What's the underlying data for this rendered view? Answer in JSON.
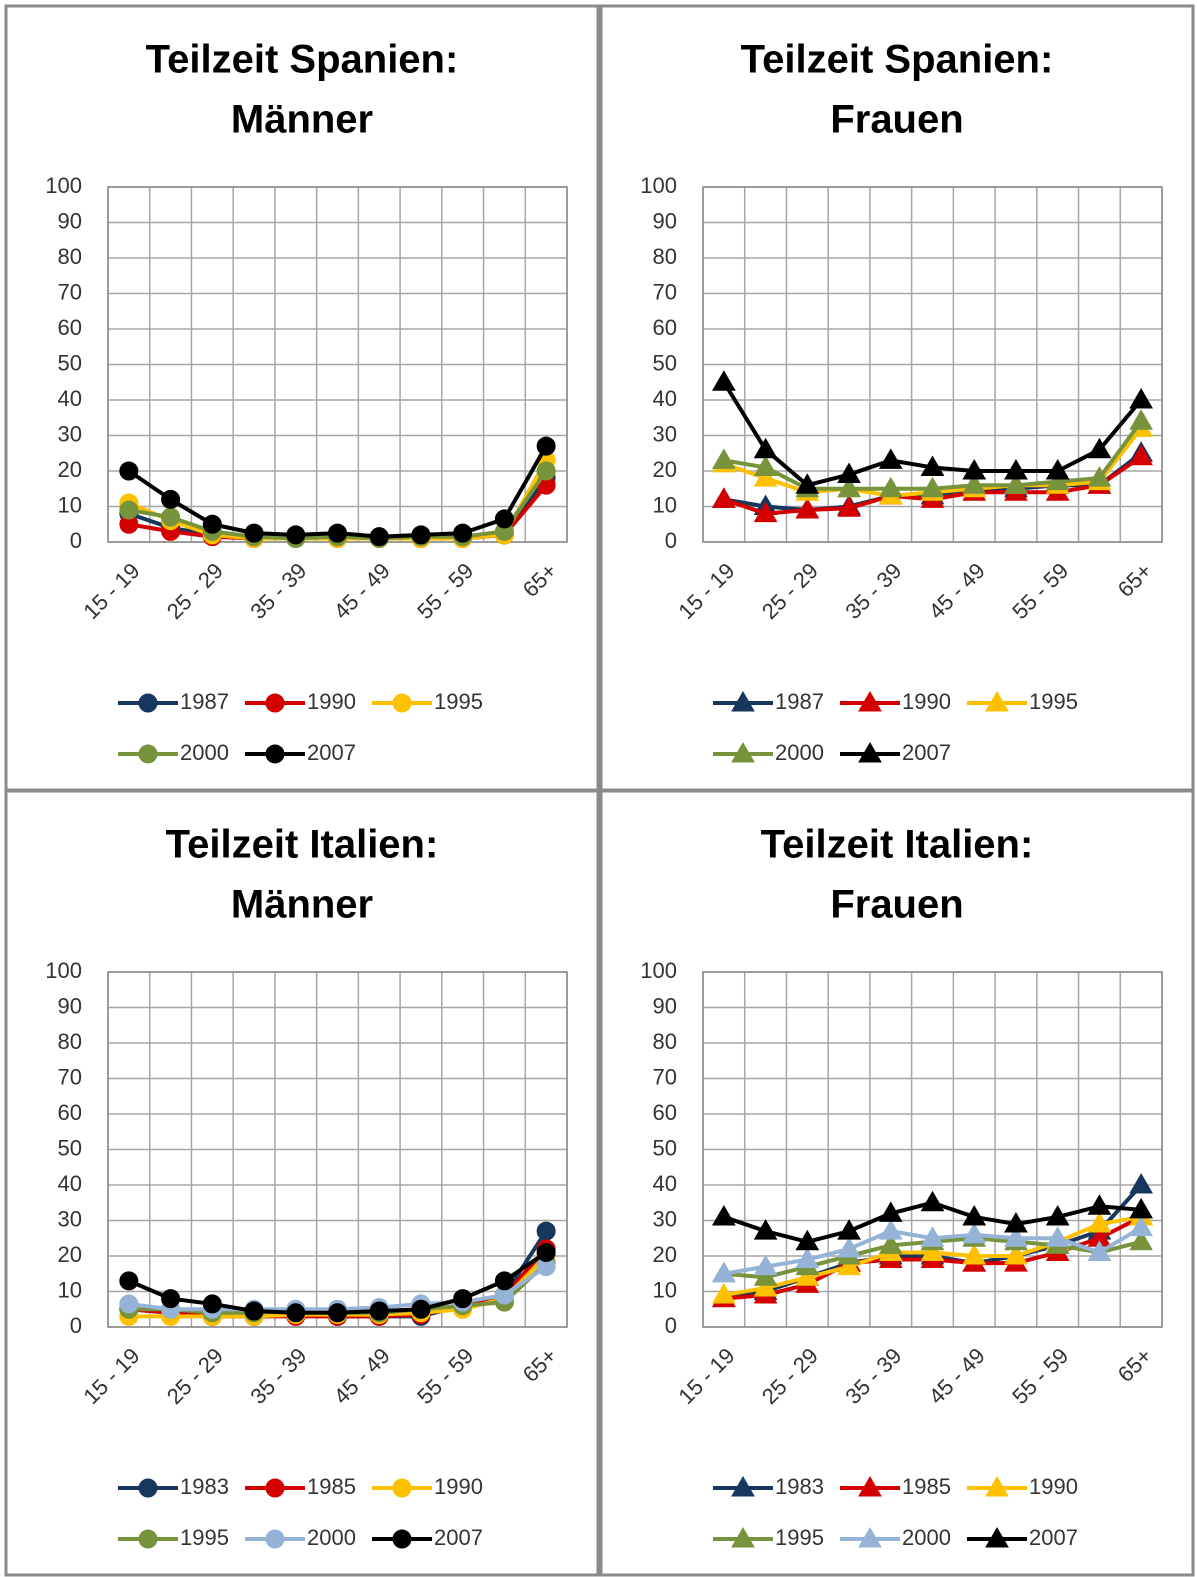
{
  "chart_data": [
    {
      "type": "line",
      "marker": "circle",
      "title": [
        "Teilzeit Spanien:",
        "Männer"
      ],
      "categories": [
        "15 - 19",
        null,
        "25 - 29",
        null,
        "35 - 39",
        null,
        "45 - 49",
        null,
        "55 - 59",
        null,
        "65+"
      ],
      "ylim": [
        0,
        100
      ],
      "yticks": [
        0,
        10,
        20,
        30,
        40,
        50,
        60,
        70,
        80,
        90,
        100
      ],
      "grid": true,
      "series": [
        {
          "name": "1987",
          "color": "#17375e",
          "values": [
            8,
            4,
            2,
            1,
            1,
            1,
            1,
            1,
            1,
            2,
            18
          ]
        },
        {
          "name": "1990",
          "color": "#d40000",
          "values": [
            5,
            3,
            1.5,
            1,
            1,
            1,
            1,
            1,
            1,
            2,
            16
          ]
        },
        {
          "name": "1995",
          "color": "#ffc000",
          "values": [
            11,
            6,
            2,
            1,
            1,
            1,
            1,
            1,
            1,
            2,
            23
          ]
        },
        {
          "name": "2000",
          "color": "#77933c",
          "values": [
            9,
            7,
            3,
            1.5,
            1,
            1.5,
            1,
            1.5,
            1.5,
            3,
            20
          ]
        },
        {
          "name": "2007",
          "color": "#000000",
          "values": [
            20,
            12,
            5,
            2.5,
            2,
            2.5,
            1.5,
            2,
            2.5,
            6.5,
            27
          ]
        }
      ]
    },
    {
      "type": "line",
      "marker": "triangle",
      "title": [
        "Teilzeit Spanien:",
        "Frauen"
      ],
      "categories": [
        "15 - 19",
        null,
        "25 - 29",
        null,
        "35 - 39",
        null,
        "45 - 49",
        null,
        "55 - 59",
        null,
        "65+"
      ],
      "ylim": [
        0,
        100
      ],
      "yticks": [
        0,
        10,
        20,
        30,
        40,
        50,
        60,
        70,
        80,
        90,
        100
      ],
      "grid": true,
      "series": [
        {
          "name": "1987",
          "color": "#17375e",
          "values": [
            12,
            10,
            9,
            10,
            13,
            13,
            15,
            15,
            16,
            16,
            25
          ]
        },
        {
          "name": "1990",
          "color": "#d40000",
          "values": [
            12,
            8,
            9,
            9.5,
            13,
            12,
            14,
            14,
            14,
            16,
            24
          ]
        },
        {
          "name": "1995",
          "color": "#ffc000",
          "values": [
            22,
            18,
            14,
            15,
            13,
            14,
            15,
            16,
            16,
            17,
            32
          ]
        },
        {
          "name": "2000",
          "color": "#77933c",
          "values": [
            23,
            21,
            15,
            15,
            15,
            15,
            16,
            16,
            17,
            18,
            34
          ]
        },
        {
          "name": "2007",
          "color": "#000000",
          "values": [
            45,
            26,
            16,
            19,
            23,
            21,
            20,
            20,
            20,
            26,
            40
          ]
        }
      ]
    },
    {
      "type": "line",
      "marker": "circle",
      "title": [
        "Teilzeit Italien:",
        "Männer"
      ],
      "categories": [
        "15 - 19",
        null,
        "25 - 29",
        null,
        "35 - 39",
        null,
        "45 - 49",
        null,
        "55 - 59",
        null,
        "65+"
      ],
      "ylim": [
        0,
        100
      ],
      "yticks": [
        0,
        10,
        20,
        30,
        40,
        50,
        60,
        70,
        80,
        90,
        100
      ],
      "grid": true,
      "series": [
        {
          "name": "1983",
          "color": "#17375e",
          "values": [
            5,
            4,
            3,
            3,
            3.5,
            3,
            3,
            3,
            6,
            9,
            27
          ]
        },
        {
          "name": "1985",
          "color": "#d40000",
          "values": [
            5,
            4,
            3,
            3,
            3,
            3,
            3,
            3.5,
            6,
            9,
            22
          ]
        },
        {
          "name": "1990",
          "color": "#ffc000",
          "values": [
            3,
            3,
            3,
            3,
            3.5,
            3.5,
            3.5,
            4,
            5,
            8,
            20
          ]
        },
        {
          "name": "1995",
          "color": "#77933c",
          "values": [
            5,
            5,
            4,
            4,
            4.5,
            4,
            4,
            5,
            6,
            7,
            18
          ]
        },
        {
          "name": "2000",
          "color": "#95b3d7",
          "values": [
            6.5,
            5,
            5,
            5,
            5,
            5,
            5.5,
            6.5,
            7,
            9,
            17
          ]
        },
        {
          "name": "2007",
          "color": "#000000",
          "values": [
            13,
            8,
            6.5,
            4.5,
            4,
            4,
            4.5,
            5,
            8,
            13,
            21
          ]
        }
      ]
    },
    {
      "type": "line",
      "marker": "triangle",
      "title": [
        "Teilzeit Italien:",
        "Frauen"
      ],
      "categories": [
        "15 - 19",
        null,
        "25 - 29",
        null,
        "35 - 39",
        null,
        "45 - 49",
        null,
        "55 - 59",
        null,
        "65+"
      ],
      "ylim": [
        0,
        100
      ],
      "yticks": [
        0,
        10,
        20,
        30,
        40,
        50,
        60,
        70,
        80,
        90,
        100
      ],
      "grid": true,
      "series": [
        {
          "name": "1983",
          "color": "#17375e",
          "values": [
            8,
            10,
            14,
            18,
            20,
            20,
            18,
            20,
            23,
            27,
            40
          ]
        },
        {
          "name": "1985",
          "color": "#d40000",
          "values": [
            8,
            9,
            12,
            18,
            19,
            19,
            18,
            18,
            21,
            25,
            31
          ]
        },
        {
          "name": "1990",
          "color": "#ffc000",
          "values": [
            9,
            11,
            14,
            17,
            21,
            21,
            20,
            20,
            24,
            29,
            31
          ]
        },
        {
          "name": "1995",
          "color": "#77933c",
          "values": [
            15,
            14,
            17,
            20,
            23,
            24,
            25,
            24,
            23,
            21,
            24
          ]
        },
        {
          "name": "2000",
          "color": "#95b3d7",
          "values": [
            15,
            17,
            19,
            22,
            27,
            25,
            26,
            25,
            25,
            21,
            28
          ]
        },
        {
          "name": "2007",
          "color": "#000000",
          "values": [
            31,
            27,
            24,
            27,
            32,
            35,
            31,
            29,
            31,
            34,
            33
          ]
        }
      ]
    }
  ]
}
